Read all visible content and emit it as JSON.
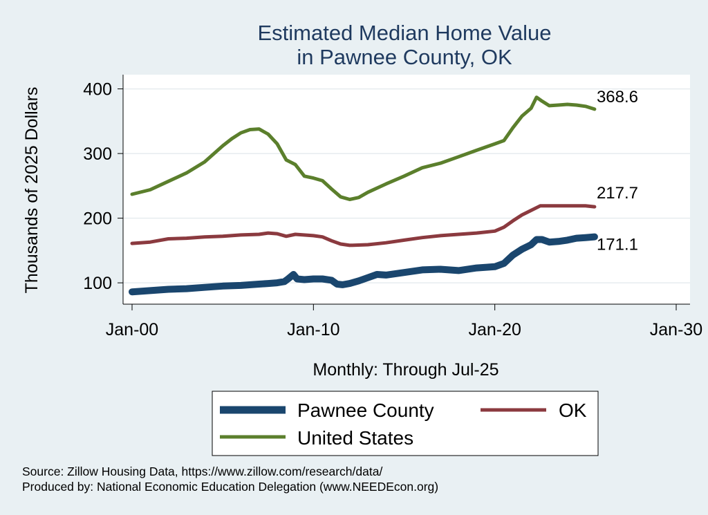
{
  "chart_data": {
    "type": "line",
    "title": [
      "Estimated Median Home Value",
      "in Pawnee County, OK"
    ],
    "ylabel": "Thousands of 2025 Dollars",
    "xlabel": "Monthly: Through Jul-25",
    "x_ticks": [
      "Jan-00",
      "Jan-10",
      "Jan-20",
      "Jan-30"
    ],
    "x_tick_values": [
      2000,
      2010,
      2020,
      2030
    ],
    "xlim": [
      2000,
      2030
    ],
    "y_ticks": [
      "100",
      "200",
      "300",
      "400"
    ],
    "y_tick_values": [
      100,
      200,
      300,
      400
    ],
    "ylim": [
      67,
      422
    ],
    "grid": true,
    "legend": "bottom",
    "series": [
      {
        "name": "Pawnee County",
        "color": "#1a466e",
        "end_label": "171.1",
        "x": [
          2000.0,
          2001.0,
          2002.0,
          2003.0,
          2004.0,
          2005.0,
          2006.0,
          2007.0,
          2007.5,
          2008.0,
          2008.4,
          2008.6,
          2008.9,
          2009.1,
          2009.5,
          2010.0,
          2010.5,
          2011.0,
          2011.3,
          2011.6,
          2012.0,
          2012.5,
          2013.0,
          2013.5,
          2014.0,
          2015.0,
          2016.0,
          2017.0,
          2018.0,
          2019.0,
          2020.0,
          2020.5,
          2021.0,
          2021.5,
          2022.0,
          2022.3,
          2022.6,
          2023.0,
          2023.5,
          2024.0,
          2024.5,
          2025.0,
          2025.5
        ],
        "y": [
          86,
          88,
          90,
          91,
          93,
          95,
          96,
          98,
          99,
          100,
          102,
          106,
          113,
          106,
          105,
          106,
          106,
          104,
          98,
          97,
          99,
          103,
          108,
          113,
          112,
          116,
          120,
          121,
          119,
          123,
          125,
          130,
          143,
          152,
          159,
          167,
          167,
          163,
          164,
          166,
          169,
          170,
          171.1
        ]
      },
      {
        "name": "OK",
        "color": "#8b3a3f",
        "end_label": "217.7",
        "x": [
          2000.0,
          2001.0,
          2002.0,
          2003.0,
          2004.0,
          2005.0,
          2006.0,
          2007.0,
          2007.5,
          2008.0,
          2008.5,
          2009.0,
          2010.0,
          2010.5,
          2011.0,
          2011.5,
          2012.0,
          2013.0,
          2014.0,
          2015.0,
          2016.0,
          2017.0,
          2018.0,
          2019.0,
          2020.0,
          2020.5,
          2021.0,
          2021.5,
          2022.0,
          2022.5,
          2023.0,
          2024.0,
          2025.0,
          2025.5
        ],
        "y": [
          161,
          163,
          168,
          169,
          171,
          172,
          174,
          175,
          177,
          176,
          172,
          175,
          173,
          171,
          165,
          160,
          158,
          159,
          162,
          166,
          170,
          173,
          175,
          177,
          180,
          186,
          196,
          205,
          212,
          219,
          219,
          219,
          219,
          217.7
        ]
      },
      {
        "name": "United States",
        "color": "#5b7f2c",
        "end_label": "368.6",
        "x": [
          2000.0,
          2001.0,
          2002.0,
          2003.0,
          2004.0,
          2005.0,
          2005.5,
          2006.0,
          2006.5,
          2007.0,
          2007.5,
          2008.0,
          2008.5,
          2009.0,
          2009.5,
          2010.0,
          2010.5,
          2011.0,
          2011.5,
          2012.0,
          2012.5,
          2013.0,
          2014.0,
          2015.0,
          2016.0,
          2017.0,
          2018.0,
          2019.0,
          2020.0,
          2020.5,
          2021.0,
          2021.5,
          2022.0,
          2022.3,
          2022.6,
          2023.0,
          2023.5,
          2024.0,
          2024.5,
          2025.0,
          2025.5
        ],
        "y": [
          237,
          244,
          257,
          270,
          287,
          312,
          323,
          332,
          337,
          338,
          330,
          315,
          290,
          283,
          265,
          262,
          258,
          245,
          233,
          229,
          232,
          240,
          253,
          265,
          278,
          285,
          295,
          305,
          315,
          320,
          340,
          358,
          370,
          387,
          381,
          374,
          375,
          376,
          375,
          373,
          368.6
        ]
      }
    ]
  },
  "source_lines": [
    "Source: Zillow Housing Data, https://www.zillow.com/research/data/",
    "Produced by: National Economic Education Delegation (www.NEEDEcon.org)"
  ]
}
